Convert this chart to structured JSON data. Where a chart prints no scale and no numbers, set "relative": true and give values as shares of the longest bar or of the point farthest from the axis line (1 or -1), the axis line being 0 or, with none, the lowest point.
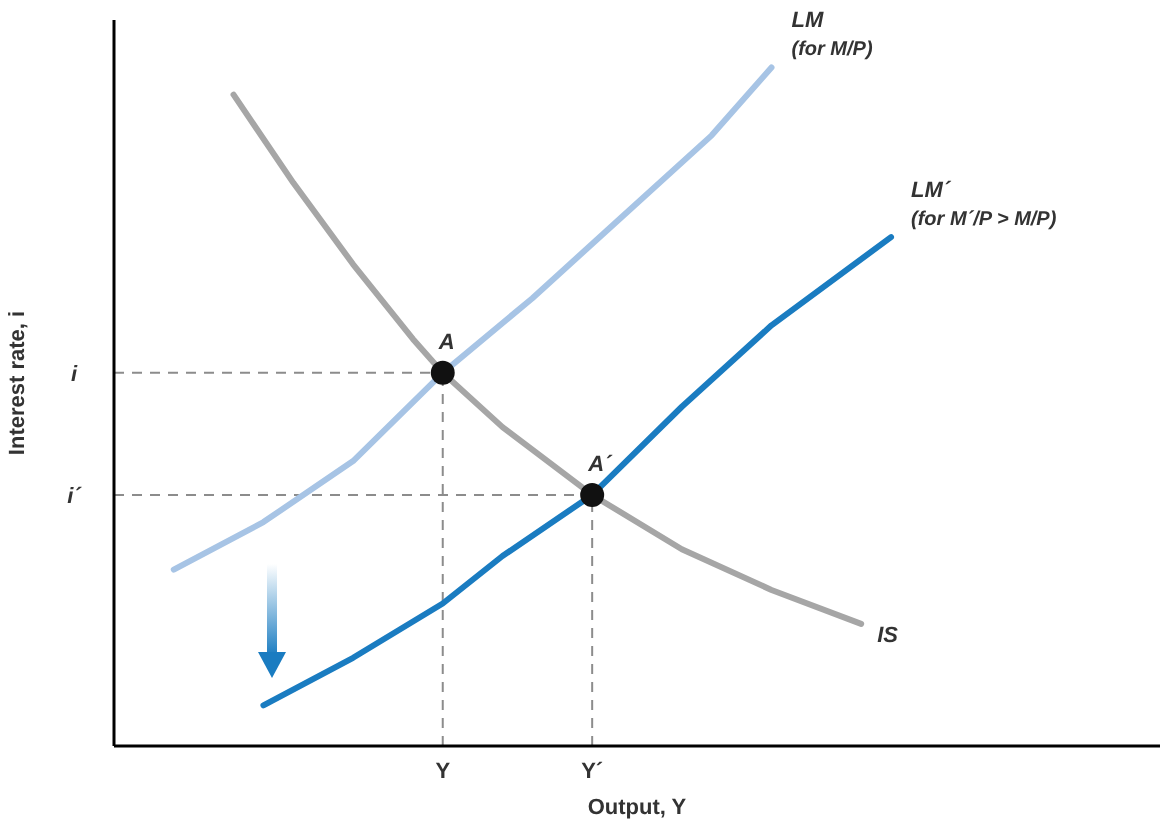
{
  "chart_data": {
    "type": "line",
    "relative": true,
    "xlabel": "Output, Y",
    "ylabel": "Interest rate, i",
    "tick_labels": "x",
    "line_style": "solid",
    "categories": [
      null,
      null,
      null,
      null,
      null,
      null,
      null,
      null,
      null,
      null,
      null,
      "Y",
      null,
      null,
      null,
      null,
      "Y´",
      null,
      null,
      null,
      null,
      null,
      null,
      null,
      null,
      null,
      null,
      null,
      null,
      null,
      null,
      null,
      null,
      null,
      null,
      null
    ],
    "series": [
      {
        "name": "IS",
        "color": "#a6a6a6",
        "marker": "none",
        "values": [
          null,
          null,
          null,
          null,
          0.96,
          null,
          0.83,
          null,
          0.71,
          null,
          0.6,
          0.55,
          null,
          0.47,
          null,
          null,
          0.37,
          null,
          null,
          0.29,
          null,
          null,
          0.23,
          null,
          null,
          0.18,
          null,
          null,
          null,
          null,
          null,
          null,
          null,
          null,
          null,
          null
        ]
      },
      {
        "name": "LM (for M/P)",
        "color": "#a7c4e5",
        "marker": "none",
        "values": [
          null,
          null,
          0.26,
          null,
          null,
          0.33,
          null,
          null,
          0.42,
          null,
          null,
          0.55,
          null,
          null,
          0.66,
          null,
          null,
          0.78,
          null,
          null,
          0.9,
          null,
          1.0,
          null,
          null,
          null,
          null,
          null,
          null,
          null,
          null,
          null,
          null,
          null,
          null,
          null
        ]
      },
      {
        "name": "LM´ (for M´/P > M/P)",
        "color": "#1a7cc1",
        "marker": "none",
        "values": [
          null,
          null,
          null,
          null,
          null,
          0.06,
          null,
          null,
          0.13,
          null,
          null,
          0.21,
          null,
          0.28,
          null,
          null,
          0.37,
          null,
          null,
          0.5,
          null,
          null,
          0.62,
          null,
          null,
          null,
          0.75,
          null,
          null,
          null,
          null,
          null,
          null,
          null,
          null,
          null
        ]
      },
      {
        "type": "scatter",
        "color": "#111111",
        "marker": "circle",
        "values": [
          null,
          null,
          null,
          null,
          null,
          null,
          null,
          null,
          null,
          null,
          null,
          0.55,
          null,
          null,
          null,
          null,
          0.37,
          null,
          null,
          null,
          null,
          null,
          null,
          null,
          null,
          null,
          null,
          null,
          null,
          null,
          null,
          null,
          null,
          null,
          null,
          null
        ]
      }
    ],
    "ref_lines": [
      {
        "axis": "y",
        "value": 0.55,
        "label": "i",
        "line_style": "dashed",
        "color": "#8c8c8c"
      },
      {
        "axis": "y",
        "value": 0.37,
        "label": "i´",
        "line_style": "dashed",
        "color": "#8c8c8c"
      }
    ],
    "annotations": [
      {
        "text": "A",
        "x": "Y",
        "y": 0.55
      },
      {
        "text": "A´",
        "x": "Y´",
        "y": 0.37
      }
    ]
  }
}
